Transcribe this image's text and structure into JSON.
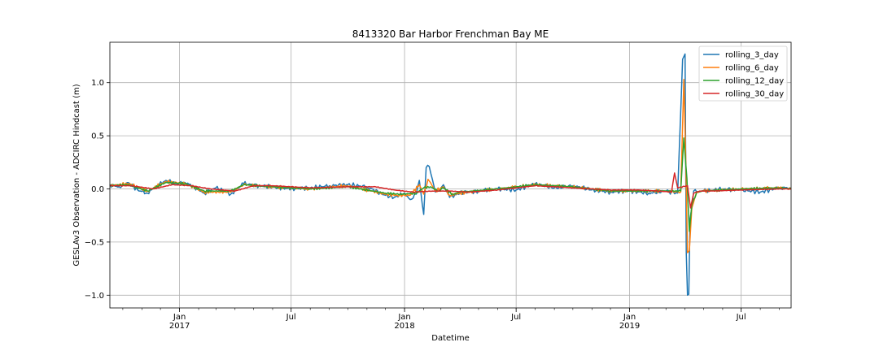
{
  "chart_data": {
    "type": "line",
    "title": "8413320 Bar Harbor Frenchman Bay ME",
    "xlabel": "Datetime",
    "ylabel": "GESLAv3 Observation - ADCIRC Hindcast (m)",
    "xlim": [
      "2016-09-10",
      "2019-09-20"
    ],
    "ylim": [
      -1.12,
      1.38
    ],
    "grid": true,
    "legend_position": "top-right",
    "yticks": [
      -1.0,
      -0.5,
      0.0,
      0.5,
      1.0
    ],
    "ytick_labels": [
      "−1.0",
      "−0.5",
      "0.0",
      "0.5",
      "1.0"
    ],
    "xticks": [
      {
        "date": "2017-01-01",
        "label": "Jan",
        "sublabel": "2017"
      },
      {
        "date": "2017-07-01",
        "label": "Jul",
        "sublabel": ""
      },
      {
        "date": "2018-01-01",
        "label": "Jan",
        "sublabel": "2018"
      },
      {
        "date": "2018-07-01",
        "label": "Jul",
        "sublabel": ""
      },
      {
        "date": "2019-01-01",
        "label": "Jan",
        "sublabel": "2019"
      },
      {
        "date": "2019-07-01",
        "label": "Jul",
        "sublabel": ""
      }
    ],
    "series": [
      {
        "name": "rolling_3_day",
        "color": "#1f77b4",
        "x": [
          "2016-09-10",
          "2016-09-25",
          "2016-10-10",
          "2016-10-25",
          "2016-11-10",
          "2016-11-25",
          "2016-12-10",
          "2016-12-25",
          "2017-01-10",
          "2017-01-25",
          "2017-02-10",
          "2017-03-01",
          "2017-03-25",
          "2017-04-15",
          "2017-05-10",
          "2017-06-01",
          "2017-07-01",
          "2017-08-01",
          "2017-09-01",
          "2017-10-01",
          "2017-11-01",
          "2017-12-01",
          "2017-12-15",
          "2018-01-01",
          "2018-01-10",
          "2018-01-20",
          "2018-01-25",
          "2018-02-01",
          "2018-02-05",
          "2018-02-10",
          "2018-02-20",
          "2018-03-01",
          "2018-03-05",
          "2018-03-15",
          "2018-04-01",
          "2018-05-01",
          "2018-06-01",
          "2018-07-01",
          "2018-08-01",
          "2018-09-01",
          "2018-10-01",
          "2018-11-01",
          "2018-12-01",
          "2019-01-01",
          "2019-02-01",
          "2019-03-01",
          "2019-03-20",
          "2019-03-28",
          "2019-04-01",
          "2019-04-03",
          "2019-04-05",
          "2019-04-07",
          "2019-04-09",
          "2019-04-12",
          "2019-04-15",
          "2019-04-20",
          "2019-05-01",
          "2019-06-01",
          "2019-07-01",
          "2019-08-01",
          "2019-09-01",
          "2019-09-20"
        ],
        "values": [
          0.04,
          0.02,
          0.06,
          -0.01,
          -0.04,
          0.03,
          0.08,
          0.05,
          0.06,
          0.02,
          -0.04,
          0.01,
          -0.05,
          0.05,
          0.03,
          0.02,
          0.0,
          0.01,
          0.03,
          0.04,
          0.02,
          -0.06,
          -0.08,
          -0.04,
          -0.1,
          -0.05,
          0.08,
          -0.24,
          0.2,
          0.21,
          -0.03,
          0.01,
          0.04,
          -0.08,
          -0.04,
          -0.02,
          0.0,
          -0.01,
          0.05,
          0.01,
          0.03,
          -0.01,
          -0.03,
          -0.02,
          -0.04,
          -0.02,
          -0.04,
          1.22,
          1.27,
          -0.6,
          -1.0,
          -0.99,
          -0.28,
          -0.18,
          -0.02,
          -0.03,
          -0.02,
          0.0,
          -0.01,
          -0.03,
          0.01,
          0.01
        ]
      },
      {
        "name": "rolling_6_day",
        "color": "#ff7f0e",
        "x": [
          "2016-09-10",
          "2016-10-10",
          "2016-11-10",
          "2016-12-10",
          "2017-01-10",
          "2017-02-10",
          "2017-03-25",
          "2017-04-15",
          "2017-06-01",
          "2017-08-01",
          "2017-10-01",
          "2017-12-01",
          "2017-12-20",
          "2018-01-10",
          "2018-01-25",
          "2018-02-01",
          "2018-02-08",
          "2018-02-12",
          "2018-02-20",
          "2018-03-05",
          "2018-03-15",
          "2018-04-01",
          "2018-06-01",
          "2018-08-01",
          "2018-10-01",
          "2018-12-01",
          "2019-01-01",
          "2019-03-01",
          "2019-03-25",
          "2019-03-30",
          "2019-04-02",
          "2019-04-05",
          "2019-04-08",
          "2019-04-12",
          "2019-04-20",
          "2019-05-01",
          "2019-07-01",
          "2019-09-01",
          "2019-09-20"
        ],
        "values": [
          0.03,
          0.05,
          -0.02,
          0.07,
          0.05,
          -0.03,
          -0.03,
          0.04,
          0.02,
          0.0,
          0.03,
          -0.05,
          -0.06,
          -0.06,
          0.04,
          -0.05,
          0.09,
          0.06,
          -0.02,
          0.02,
          -0.06,
          -0.04,
          0.0,
          0.04,
          0.02,
          -0.02,
          -0.02,
          -0.02,
          -0.03,
          1.03,
          0.3,
          -0.6,
          -0.58,
          -0.18,
          -0.03,
          -0.02,
          0.0,
          0.01,
          0.0
        ]
      },
      {
        "name": "rolling_12_day",
        "color": "#2ca02c",
        "x": [
          "2016-09-10",
          "2016-10-10",
          "2016-11-10",
          "2016-12-10",
          "2017-01-10",
          "2017-02-10",
          "2017-03-25",
          "2017-04-15",
          "2017-06-01",
          "2017-08-01",
          "2017-10-01",
          "2017-12-01",
          "2017-12-25",
          "2018-01-20",
          "2018-02-01",
          "2018-02-12",
          "2018-02-25",
          "2018-03-05",
          "2018-03-20",
          "2018-04-01",
          "2018-06-01",
          "2018-08-01",
          "2018-10-01",
          "2018-12-01",
          "2019-01-01",
          "2019-03-01",
          "2019-03-25",
          "2019-03-30",
          "2019-04-04",
          "2019-04-08",
          "2019-04-12",
          "2019-04-20",
          "2019-05-01",
          "2019-07-01",
          "2019-09-01",
          "2019-09-20"
        ],
        "values": [
          0.03,
          0.04,
          -0.02,
          0.06,
          0.05,
          -0.02,
          -0.02,
          0.04,
          0.02,
          0.0,
          0.02,
          -0.04,
          -0.05,
          -0.04,
          0.01,
          0.02,
          -0.02,
          0.01,
          -0.05,
          -0.03,
          0.0,
          0.04,
          0.02,
          -0.02,
          -0.02,
          -0.02,
          -0.02,
          0.48,
          0.1,
          -0.4,
          -0.15,
          -0.03,
          -0.02,
          0.0,
          0.01,
          0.0
        ]
      },
      {
        "name": "rolling_30_day",
        "color": "#d62728",
        "x": [
          "2016-09-10",
          "2016-10-15",
          "2016-11-20",
          "2016-12-20",
          "2017-01-20",
          "2017-02-20",
          "2017-04-01",
          "2017-05-01",
          "2017-06-01",
          "2017-08-01",
          "2017-10-01",
          "2017-11-15",
          "2017-12-15",
          "2018-01-15",
          "2018-02-15",
          "2018-03-15",
          "2018-04-15",
          "2018-06-01",
          "2018-08-01",
          "2018-10-01",
          "2018-12-01",
          "2019-01-15",
          "2019-02-15",
          "2019-03-10",
          "2019-03-15",
          "2019-03-20",
          "2019-04-05",
          "2019-04-10",
          "2019-04-15",
          "2019-04-25",
          "2019-05-15",
          "2019-07-01",
          "2019-09-01",
          "2019-09-20"
        ],
        "values": [
          0.03,
          0.03,
          0.0,
          0.04,
          0.03,
          0.0,
          -0.02,
          0.03,
          0.03,
          0.01,
          0.02,
          0.02,
          -0.01,
          -0.03,
          -0.02,
          -0.02,
          -0.03,
          -0.01,
          0.03,
          0.01,
          -0.01,
          -0.01,
          -0.02,
          -0.03,
          0.15,
          0.01,
          0.03,
          -0.18,
          -0.04,
          -0.02,
          -0.02,
          -0.01,
          0.0,
          0.0
        ]
      }
    ]
  }
}
